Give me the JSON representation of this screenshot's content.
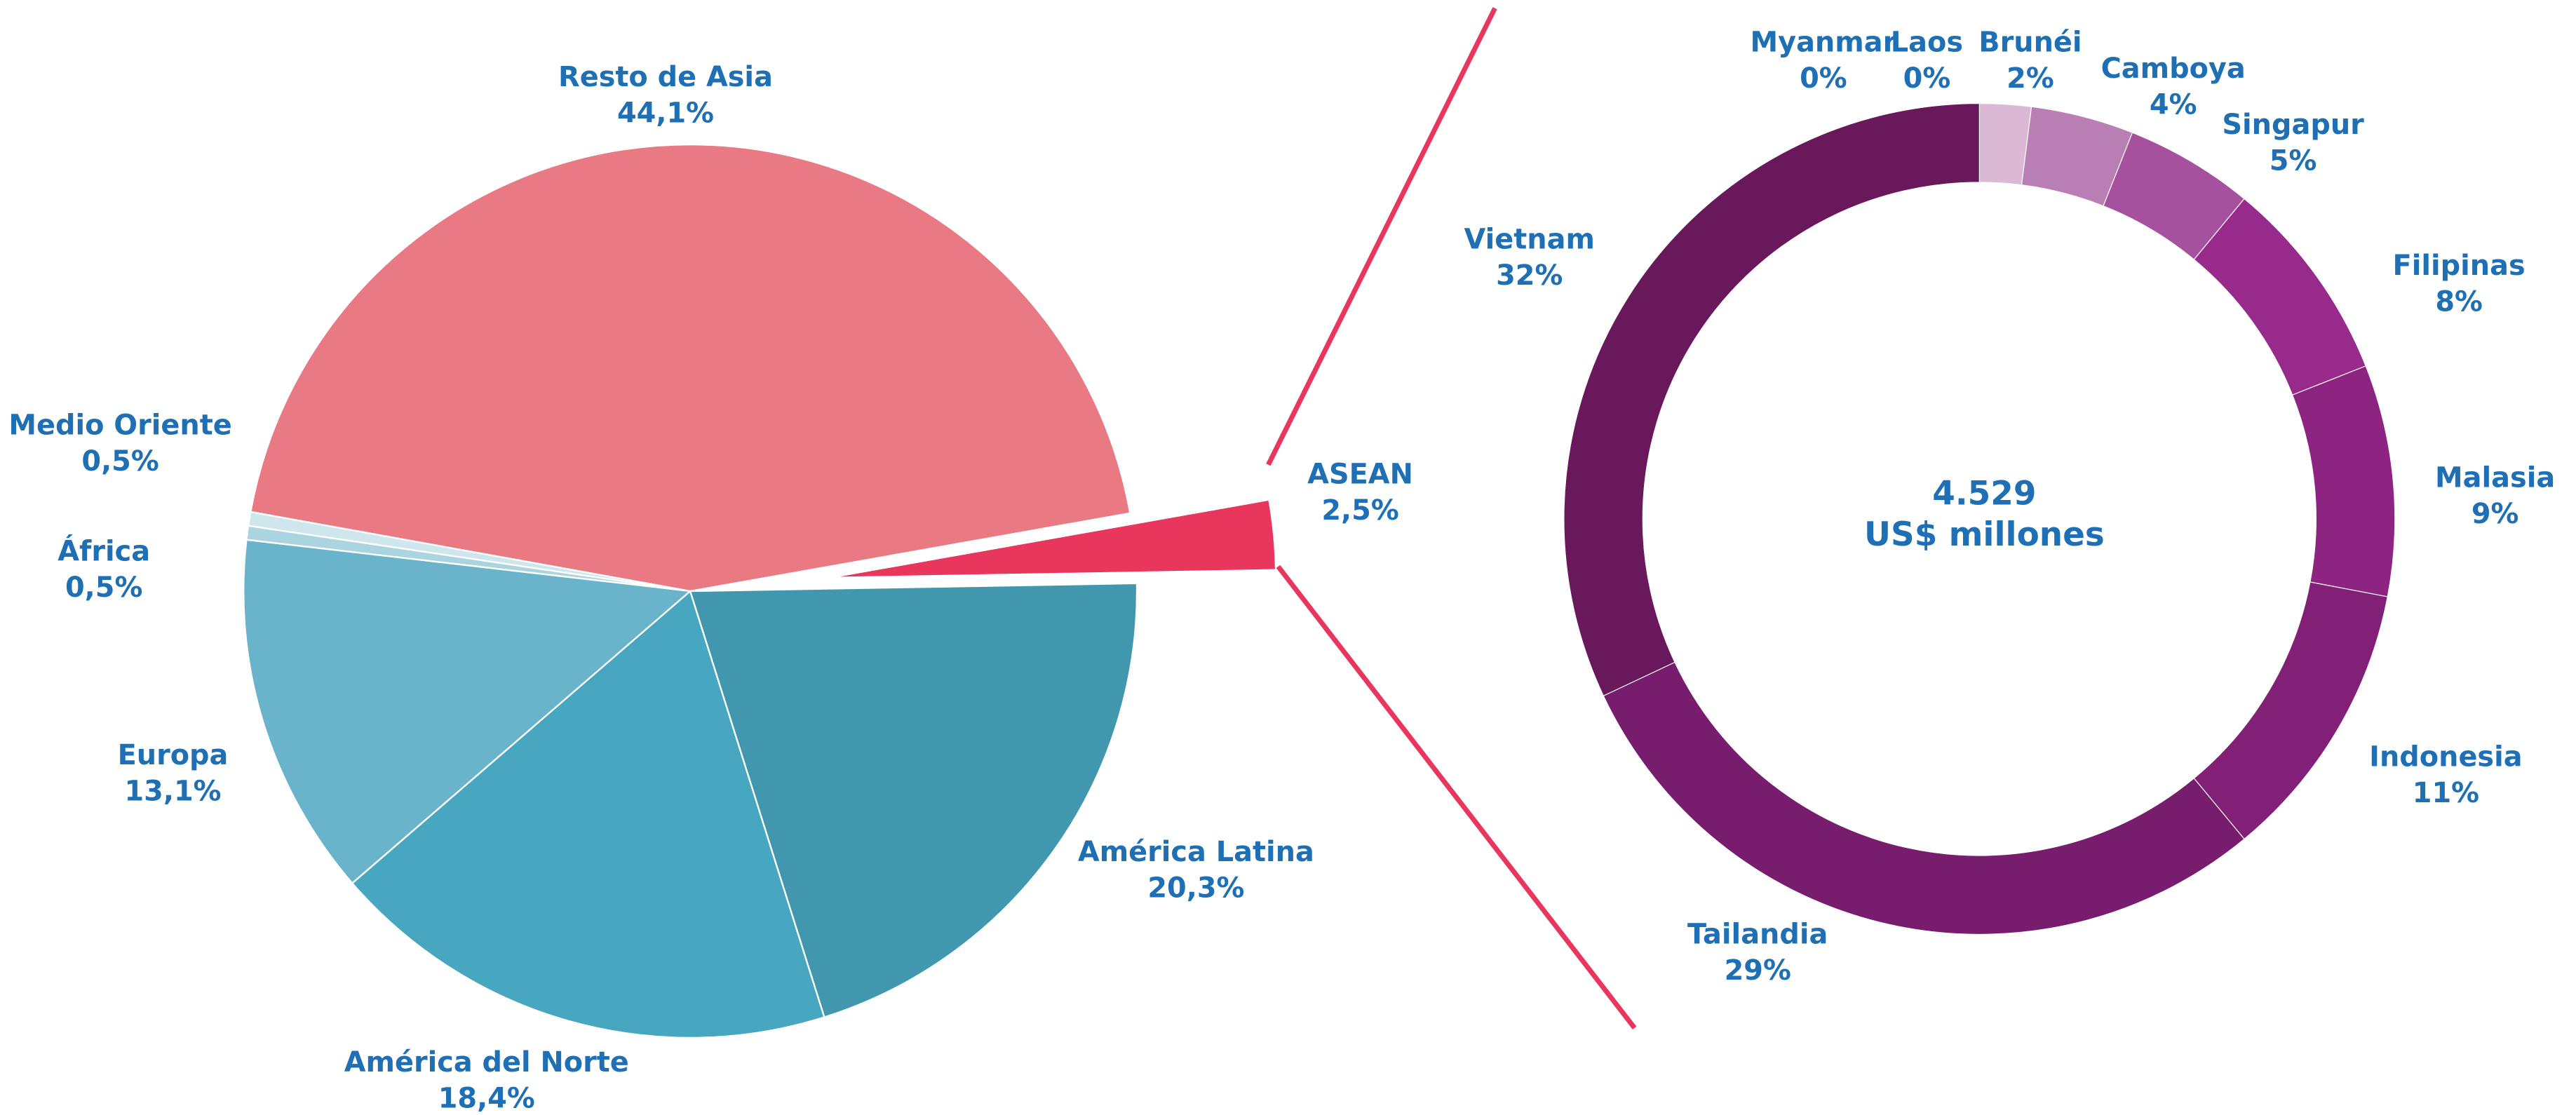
{
  "chart_data": [
    {
      "type": "pie",
      "categories": [
        "ASEAN",
        "Resto de Asia",
        "Medio Oriente",
        "África",
        "Europa",
        "América del Norte",
        "América Latina"
      ],
      "values": [
        2.5,
        44.1,
        0.5,
        0.5,
        13.1,
        18.4,
        20.3
      ],
      "value_labels": [
        "2,5%",
        "44,1%",
        "0,5%",
        "0,5%",
        "13,1%",
        "18,4%",
        "20,3%"
      ],
      "colors": [
        "#e8365c",
        "#e97a84",
        "#cfe6ed",
        "#a9d4e0",
        "#6ab4cb",
        "#48a7c0",
        "#4198ae"
      ]
    },
    {
      "type": "donut",
      "categories": [
        "Myanmar",
        "Laos",
        "Brunéi",
        "Camboya",
        "Singapur",
        "Filipinas",
        "Malasia",
        "Indonesia",
        "Tailandia",
        "Vietnam"
      ],
      "values": [
        0,
        0,
        2,
        4,
        5,
        8,
        9,
        11,
        29,
        32
      ],
      "value_labels": [
        "0%",
        "0%",
        "2%",
        "4%",
        "5%",
        "8%",
        "9%",
        "11%",
        "29%",
        "32%"
      ],
      "colors": [
        "#e9d3e4",
        "#e2c6dc",
        "#dbb8d4",
        "#b97fb4",
        "#a6519e",
        "#982a8c",
        "#8e2482",
        "#822078",
        "#781c6d",
        "#6a185c"
      ],
      "center_label": [
        "4.529",
        "US$ millones"
      ]
    }
  ]
}
